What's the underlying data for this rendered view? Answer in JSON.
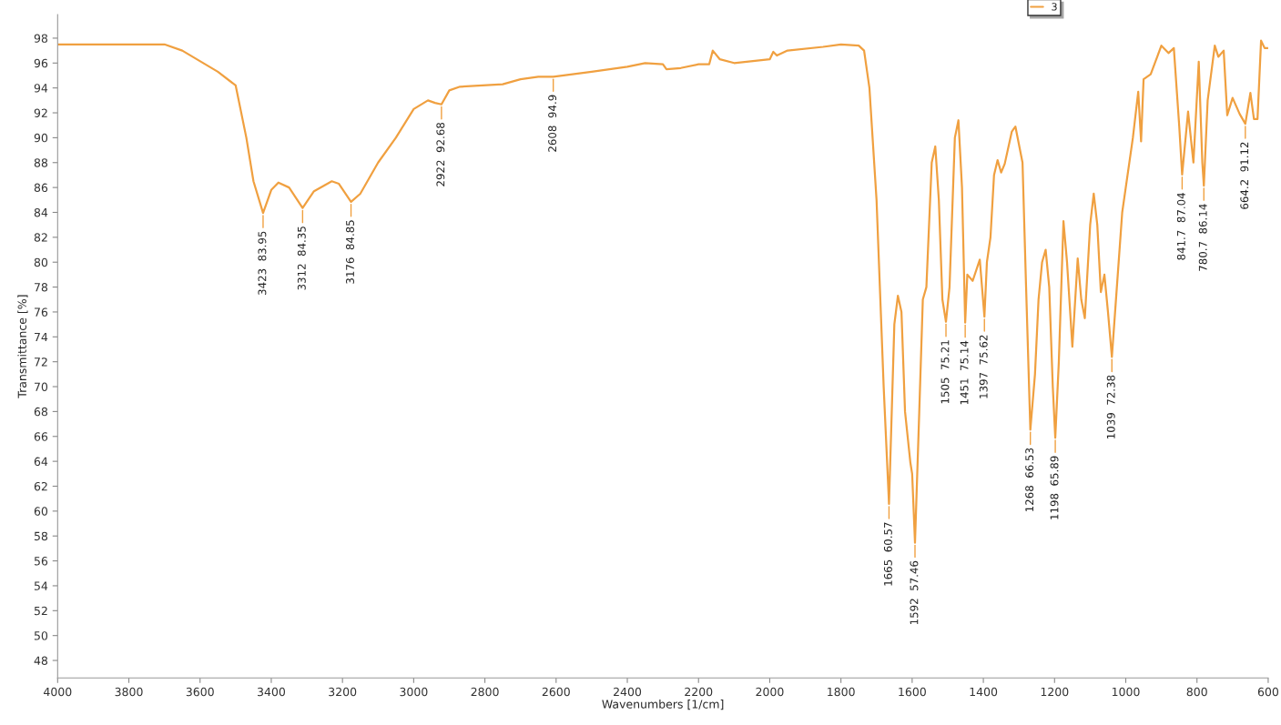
{
  "chart_data": {
    "type": "line",
    "xlabel": "Wavenumbers [1/cm]",
    "ylabel": "Transmittance [%]",
    "legend": "top right",
    "grid": false,
    "marker": "none",
    "line_style": "solid",
    "xlim": [
      4000,
      600
    ],
    "xticks": [
      4000,
      3800,
      3600,
      3400,
      3200,
      3000,
      2800,
      2600,
      2400,
      2200,
      2000,
      1800,
      1600,
      1400,
      1200,
      1000,
      800,
      600
    ],
    "ylim": [
      46.6,
      99.9
    ],
    "yticks": [
      48,
      50,
      52,
      54,
      56,
      58,
      60,
      62,
      64,
      66,
      68,
      70,
      72,
      74,
      76,
      78,
      80,
      82,
      84,
      86,
      88,
      90,
      92,
      94,
      96,
      98
    ],
    "series": [
      {
        "name": "3",
        "color": "#f0a040",
        "x": [
          4000,
          3700,
          3650,
          3550,
          3500,
          3470,
          3450,
          3423,
          3400,
          3380,
          3350,
          3312,
          3280,
          3230,
          3210,
          3176,
          3150,
          3100,
          3050,
          3000,
          2960,
          2940,
          2922,
          2900,
          2870,
          2750,
          2700,
          2650,
          2608,
          2500,
          2400,
          2350,
          2300,
          2290,
          2250,
          2200,
          2170,
          2160,
          2140,
          2100,
          2000,
          1990,
          1980,
          1950,
          1850,
          1800,
          1750,
          1735,
          1720,
          1700,
          1680,
          1665,
          1650,
          1640,
          1630,
          1620,
          1605,
          1600,
          1592,
          1580,
          1570,
          1560,
          1545,
          1535,
          1525,
          1515,
          1505,
          1495,
          1480,
          1470,
          1460,
          1451,
          1445,
          1430,
          1410,
          1397,
          1390,
          1380,
          1370,
          1360,
          1350,
          1340,
          1320,
          1310,
          1290,
          1280,
          1268,
          1255,
          1245,
          1235,
          1225,
          1215,
          1205,
          1198,
          1188,
          1175,
          1165,
          1150,
          1135,
          1125,
          1115,
          1100,
          1090,
          1080,
          1070,
          1060,
          1050,
          1039,
          1030,
          1010,
          1000,
          980,
          965,
          957,
          950,
          930,
          900,
          880,
          865,
          850,
          841.7,
          825,
          810,
          795,
          785,
          780.7,
          770,
          750,
          740,
          725,
          715,
          700,
          680,
          664.2,
          650,
          640,
          630,
          620,
          610,
          600
        ],
        "values": [
          97.5,
          97.5,
          97.0,
          95.3,
          94.2,
          90,
          86.5,
          83.95,
          85.8,
          86.4,
          86.0,
          84.35,
          85.7,
          86.5,
          86.3,
          84.85,
          85.5,
          88,
          90,
          92.3,
          93.0,
          92.8,
          92.68,
          93.8,
          94.1,
          94.3,
          94.7,
          94.9,
          94.9,
          95.3,
          95.7,
          96.0,
          95.9,
          95.5,
          95.6,
          95.9,
          95.9,
          97.0,
          96.3,
          96.0,
          96.3,
          96.9,
          96.6,
          97.0,
          97.3,
          97.5,
          97.4,
          97.0,
          94,
          85,
          70,
          60.57,
          75,
          77.3,
          76,
          68,
          63.9,
          63.0,
          57.46,
          68,
          77,
          78,
          88,
          89.3,
          85,
          77,
          75.21,
          78,
          90,
          91.4,
          86,
          75.14,
          79,
          78.5,
          80.2,
          75.62,
          80,
          82,
          87,
          88.2,
          87.2,
          87.9,
          90.5,
          90.9,
          88,
          78,
          66.53,
          71,
          77,
          80,
          81,
          78,
          70,
          65.89,
          72,
          83.3,
          80,
          73.2,
          80.3,
          77,
          75.5,
          83,
          85.5,
          83,
          77.6,
          79,
          76,
          72.38,
          76,
          84,
          86,
          90,
          93.7,
          89.7,
          94.7,
          95.1,
          97.4,
          96.8,
          97.2,
          91,
          87.04,
          92.1,
          88.0,
          96.1,
          88,
          86.14,
          93,
          97.4,
          96.5,
          97,
          91.8,
          93.2,
          91.9,
          91.12,
          93.6,
          91.5,
          91.5,
          97.8,
          97.2,
          97.2
        ]
      }
    ],
    "annotations": [
      {
        "text": "3423  83.95",
        "x": 3423,
        "y": 83.95
      },
      {
        "text": "3312  84.35",
        "x": 3312,
        "y": 84.35
      },
      {
        "text": "3176  84.85",
        "x": 3176,
        "y": 84.85
      },
      {
        "text": "2922  92.68",
        "x": 2922,
        "y": 92.68
      },
      {
        "text": "2608  94.9",
        "x": 2608,
        "y": 94.9
      },
      {
        "text": "1665  60.57",
        "x": 1665,
        "y": 60.57
      },
      {
        "text": "1592  57.46",
        "x": 1592,
        "y": 57.46
      },
      {
        "text": "1505  75.21",
        "x": 1505,
        "y": 75.21
      },
      {
        "text": "1451  75.14",
        "x": 1451,
        "y": 75.14
      },
      {
        "text": "1397  75.62",
        "x": 1397,
        "y": 75.62
      },
      {
        "text": "1268  66.53",
        "x": 1268,
        "y": 66.53
      },
      {
        "text": "1198  65.89",
        "x": 1198,
        "y": 65.89
      },
      {
        "text": "1039  72.38",
        "x": 1039,
        "y": 72.38
      },
      {
        "text": "841.7  87.04",
        "x": 841.7,
        "y": 87.04
      },
      {
        "text": "780.7  86.14",
        "x": 780.7,
        "y": 86.14
      },
      {
        "text": "664.2  91.12",
        "x": 664.2,
        "y": 91.12
      }
    ]
  }
}
